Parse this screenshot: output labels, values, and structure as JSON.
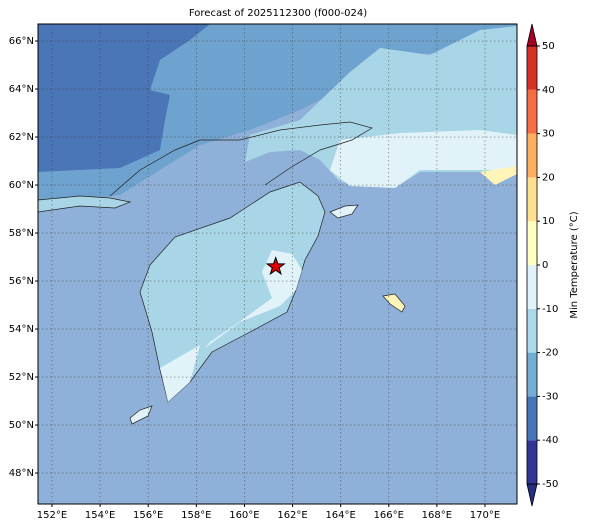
{
  "title": "Forecast of 2025112300 (f000-024)",
  "map": {
    "xlim": [
      151.42,
      171.33
    ],
    "ylim": [
      46.71,
      66.71
    ],
    "xticks": [
      {
        "value": 152,
        "label": "152°E"
      },
      {
        "value": 154,
        "label": "154°E"
      },
      {
        "value": 156,
        "label": "156°E"
      },
      {
        "value": 158,
        "label": "158°E"
      },
      {
        "value": 160,
        "label": "160°E"
      },
      {
        "value": 162,
        "label": "162°E"
      },
      {
        "value": 164,
        "label": "164°E"
      },
      {
        "value": 166,
        "label": "166°E"
      },
      {
        "value": 168,
        "label": "168°E"
      },
      {
        "value": 170,
        "label": "170°E"
      }
    ],
    "yticks": [
      {
        "value": 48,
        "label": "48°N"
      },
      {
        "value": 50,
        "label": "50°N"
      },
      {
        "value": 52,
        "label": "52°N"
      },
      {
        "value": 54,
        "label": "54°N"
      },
      {
        "value": 56,
        "label": "56°N"
      },
      {
        "value": 58,
        "label": "58°N"
      },
      {
        "value": 60,
        "label": "60°N"
      },
      {
        "value": 62,
        "label": "62°N"
      },
      {
        "value": 64,
        "label": "64°N"
      },
      {
        "value": 66,
        "label": "66°N"
      }
    ],
    "grid": true,
    "marker": {
      "lon": 161.3,
      "lat": 56.6,
      "color": "#e00000"
    }
  },
  "colorbar": {
    "label": "Min Temperature (°C)",
    "lim": [
      -50,
      50
    ],
    "ticks": [
      -50,
      -40,
      -30,
      -20,
      -10,
      0,
      10,
      20,
      30,
      40,
      50
    ],
    "colors": [
      "#313695",
      "#4575b4",
      "#74add1",
      "#abd9e9",
      "#e0f3f8",
      "#ffffbf",
      "#fee090",
      "#fdae61",
      "#f46d43",
      "#d73027"
    ],
    "under_color": "#262f80",
    "over_color": "#a50026"
  }
}
